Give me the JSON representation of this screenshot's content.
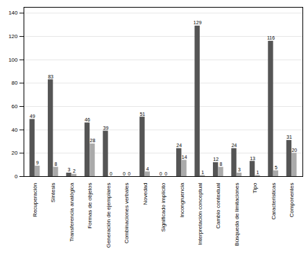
{
  "chart_data": {
    "type": "bar",
    "categories": [
      "Recuperación",
      "Síntesis",
      "Transferencia analógica",
      "Formas de objetos",
      "Generación de ejemplares",
      "Combinaciones verbales",
      "Novedad",
      "Significado implícito",
      "Incongruencia",
      "Interpretación conceptual",
      "Cambio contextual",
      "Búsqueda de limitaciones",
      "Tipo",
      "Características",
      "Componentes"
    ],
    "series": [
      {
        "color": "#555555",
        "values": [
          49,
          83,
          3,
          46,
          39,
          0,
          51,
          0,
          24,
          129,
          12,
          24,
          13,
          116,
          31
        ]
      },
      {
        "color": "#aaaaaa",
        "values": [
          9,
          8,
          2,
          28,
          0,
          0,
          4,
          0,
          14,
          1,
          8,
          3,
          1,
          5,
          20
        ]
      }
    ],
    "ylim": [
      0,
      145
    ],
    "yticks": [
      0,
      20,
      40,
      60,
      80,
      100,
      120,
      140
    ],
    "grid": true,
    "data_labels": true
  }
}
